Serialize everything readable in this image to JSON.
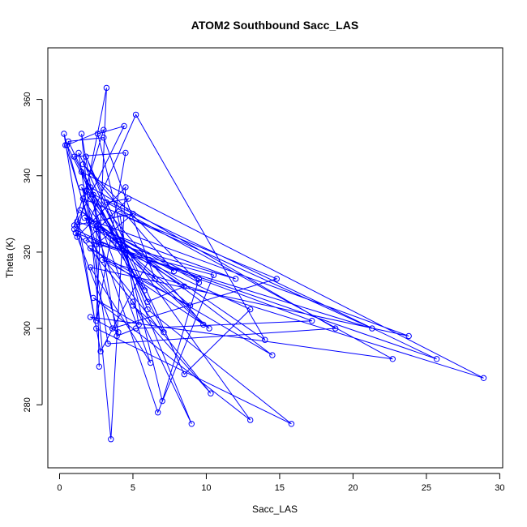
{
  "chart_data": {
    "type": "line",
    "title": "ATOM2 Southbound Sacc_LAS",
    "xlabel": "Sacc_LAS",
    "ylabel": "Theta (K)",
    "xlim": [
      -0.8,
      30.2
    ],
    "ylim": [
      263.5,
      373.5
    ],
    "xticks": [
      0,
      5,
      10,
      15,
      20,
      25,
      30
    ],
    "yticks": [
      280,
      300,
      320,
      340,
      360
    ],
    "grid": false,
    "legend": "none",
    "marker": "open-circle",
    "color": "#0000ff",
    "series": [
      {
        "points": [
          [
            0.4,
            348
          ],
          [
            2.5,
            322
          ],
          [
            5,
            330
          ],
          [
            1,
            327
          ],
          [
            3,
            352
          ],
          [
            0.5,
            348
          ],
          [
            3.8,
            323
          ],
          [
            6.5,
            313
          ],
          [
            3,
            350
          ],
          [
            0.6,
            349
          ],
          [
            4,
            322
          ],
          [
            8.5,
            311
          ],
          [
            6,
            307
          ],
          [
            1,
            345
          ],
          [
            4.5,
            346
          ],
          [
            2.5,
            302
          ],
          [
            3.2,
            363
          ],
          [
            1.2,
            324
          ],
          [
            4.5,
            337
          ],
          [
            3.5,
            271
          ],
          [
            1.5,
            351
          ],
          [
            2.8,
            322
          ],
          [
            10.5,
            314
          ],
          [
            6.7,
            278
          ],
          [
            1.5,
            337
          ],
          [
            3.8,
            324
          ],
          [
            14,
            297
          ],
          [
            5.2,
            356
          ],
          [
            2,
            328
          ],
          [
            9.5,
            313
          ],
          [
            7,
            281
          ],
          [
            2.6,
            351
          ],
          [
            4.4,
            353
          ],
          [
            1.2,
            328
          ],
          [
            12,
            313
          ],
          [
            4,
            322
          ],
          [
            9,
            275
          ],
          [
            5,
            307
          ],
          [
            1,
            326
          ],
          [
            13,
            305
          ],
          [
            8.5,
            288
          ],
          [
            1.8,
            345
          ],
          [
            6,
            305
          ],
          [
            15.8,
            275
          ],
          [
            2.5,
            300
          ],
          [
            0.3,
            351
          ],
          [
            4,
            299
          ],
          [
            2.1,
            303
          ],
          [
            22.7,
            292
          ],
          [
            3.2,
            333
          ],
          [
            4.7,
            334
          ],
          [
            1.8,
            323
          ],
          [
            21.3,
            300
          ],
          [
            4.1,
            330
          ],
          [
            5.4,
            301
          ],
          [
            2.3,
            308
          ],
          [
            13,
            276
          ],
          [
            1.8,
            336
          ],
          [
            25.7,
            292
          ],
          [
            6.1,
            318
          ],
          [
            2.8,
            294
          ],
          [
            1.2,
            327
          ],
          [
            10.3,
            283
          ],
          [
            5,
            306
          ],
          [
            7.1,
            299
          ],
          [
            2.1,
            337
          ],
          [
            18.8,
            300
          ],
          [
            3.3,
            296
          ],
          [
            1.3,
            346
          ],
          [
            5.8,
            310
          ],
          [
            1.6,
            334
          ],
          [
            14.8,
            313
          ],
          [
            3.6,
            300
          ],
          [
            1.1,
            325
          ],
          [
            17.2,
            302
          ],
          [
            5.2,
            300
          ],
          [
            3.9,
            298
          ],
          [
            2.3,
            335
          ],
          [
            9.8,
            301
          ],
          [
            1.7,
            329
          ],
          [
            23.8,
            298
          ],
          [
            2.1,
            316
          ],
          [
            6.2,
            291
          ],
          [
            1.5,
            341
          ],
          [
            28.9,
            287
          ],
          [
            2.9,
            318
          ],
          [
            8.9,
            306
          ],
          [
            1.4,
            331
          ],
          [
            14.5,
            293
          ],
          [
            2.1,
            321
          ],
          [
            10.2,
            300
          ],
          [
            2.6,
            327
          ],
          [
            9.5,
            312
          ],
          [
            1.6,
            343
          ],
          [
            7.8,
            315
          ],
          [
            2.5,
            326
          ],
          [
            2.7,
            290
          ]
        ]
      }
    ]
  }
}
